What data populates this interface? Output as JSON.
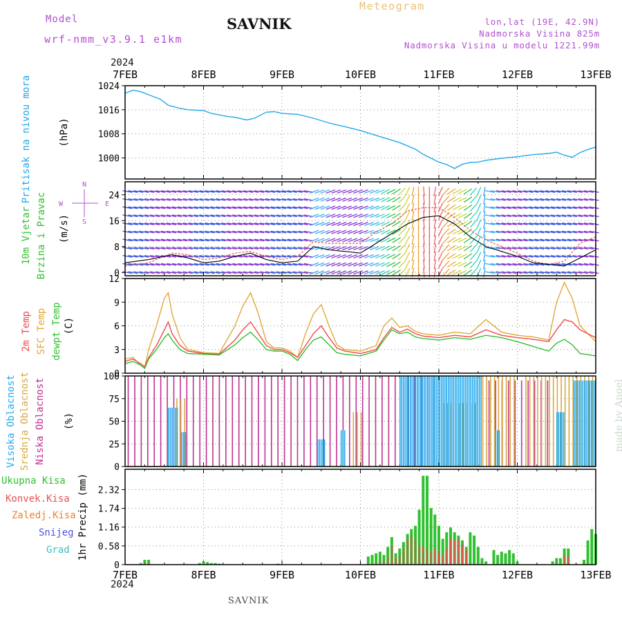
{
  "header": {
    "model_label": "Model",
    "model_name": "wrf-nmm_v3.9.1 e1km",
    "station": "SAVNIK",
    "product": "Meteogram",
    "coords": "lon,lat (19E, 42.9N)",
    "elevation": "Nadmorska Visina 825m",
    "model_elevation": "Nadmorska Visina u modelu 1221.99m",
    "footer_station": "SAVNIK",
    "credit": "made by Angel",
    "year": "2024"
  },
  "colors": {
    "pressure": "#22a7e8",
    "wind_line": "#000000",
    "wind_gust": "#f05050",
    "temp2m": "#f04848",
    "sfc": "#e0a838",
    "dew": "#30c030",
    "high_cloud": "#22aaee",
    "mid_cloud": "#d8a840",
    "low_cloud": "#c03090",
    "precip_total": "#30c030",
    "precip_conv": "#e85050",
    "precip_frozen": "#f08030",
    "precip_snow": "#5050e0",
    "precip_graupel": "#40c0c0",
    "magenta_label": "#b050d0"
  },
  "chart_data": [
    {
      "type": "line",
      "name": "pressure",
      "ylabel_1": "Pritisak na nivou mora",
      "ylabel_2": "(hPa)",
      "ylim": [
        993,
        1024
      ],
      "yticks": [
        "1024",
        "1016",
        "1008",
        "1000"
      ],
      "ytick_values": [
        1024,
        1016,
        1008,
        1000
      ],
      "xtick_labels": [
        "7FEB",
        "8FEB",
        "9FEB",
        "10FEB",
        "11FEB",
        "12FEB",
        "13FEB"
      ],
      "grid": true,
      "series": [
        {
          "name": "",
          "x_days": [
            0,
            0.1,
            0.2,
            0.3,
            0.45,
            0.55,
            0.7,
            0.8,
            1.0,
            1.1,
            1.3,
            1.4,
            1.55,
            1.65,
            1.8,
            1.9,
            2.0,
            2.2,
            2.4,
            2.6,
            2.8,
            3.0,
            3.2,
            3.4,
            3.5,
            3.7,
            3.8,
            4.0,
            4.1,
            4.2,
            4.3,
            4.4,
            4.5,
            4.6,
            4.8,
            5.0,
            5.2,
            5.4,
            5.5,
            5.6,
            5.7,
            5.8,
            5.9,
            6.0
          ],
          "values": [
            1021.5,
            1022.5,
            1022,
            1021,
            1019.5,
            1017.5,
            1016.5,
            1016,
            1015.7,
            1014.8,
            1013.8,
            1013.5,
            1012.6,
            1013.2,
            1015.2,
            1015.4,
            1014.8,
            1014.5,
            1013.2,
            1011.6,
            1010.4,
            1009.1,
            1007.5,
            1005.9,
            1005.1,
            1002.9,
            1001.2,
            998.6,
            997.8,
            996.5,
            997.9,
            998.5,
            998.6,
            999.2,
            999.9,
            1000.4,
            1001.1,
            1001.5,
            1001.9,
            1000.9,
            1000.2,
            1001.8,
            1002.8,
            1003.6
          ]
        }
      ]
    },
    {
      "type": "line",
      "name": "wind",
      "ylabel_1": "10m Vjetar",
      "ylabel_2": "Brzina i Pravac",
      "ylabel_3": "(m/s)",
      "compass": "N",
      "compass_w": "W",
      "compass_e": "E",
      "compass_s": "S",
      "ylim": [
        -1,
        28
      ],
      "yticks": [
        "24",
        "16",
        "8",
        "0"
      ],
      "ytick_values": [
        24,
        16,
        8,
        0
      ],
      "grid": true,
      "series": [
        {
          "name": "",
          "x_days": [
            0,
            0.3,
            0.6,
            0.8,
            1.0,
            1.2,
            1.4,
            1.6,
            1.8,
            2.0,
            2.2,
            2.4,
            2.6,
            2.8,
            3.0,
            3.2,
            3.4,
            3.6,
            3.8,
            4.0,
            4.2,
            4.4,
            4.6,
            4.8,
            5.0,
            5.2,
            5.4,
            5.6,
            5.8,
            6.0
          ],
          "values": [
            3,
            4,
            5.5,
            4.5,
            3,
            3.5,
            5,
            6,
            4,
            3,
            3.5,
            8,
            7,
            6.5,
            6,
            9,
            12,
            15,
            17,
            17.5,
            15,
            11,
            8,
            6.5,
            5,
            3,
            2.5,
            2,
            4.5,
            7
          ]
        },
        {
          "name": "",
          "x_days": [
            0,
            0.3,
            0.6,
            0.8,
            1.0,
            1.2,
            1.4,
            1.6,
            1.8,
            2.0,
            2.2,
            2.4,
            2.6,
            2.8,
            3.0,
            3.2,
            3.4,
            3.6,
            3.8,
            4.0,
            4.2,
            4.4,
            4.6,
            4.8,
            5.0,
            5.2,
            5.4,
            5.6,
            5.8,
            6.0
          ],
          "values": [
            2,
            3,
            6,
            5.5,
            4,
            4.5,
            6,
            6.5,
            5,
            4,
            5,
            9.5,
            9,
            9,
            9,
            12.5,
            15,
            19,
            20,
            20,
            17,
            13,
            10,
            8,
            6,
            3.5,
            2.5,
            3.5,
            9,
            11
          ]
        }
      ]
    },
    {
      "type": "line",
      "name": "temperature",
      "ylabel_1": "2m Temp",
      "ylabel_2": "SFC Temp",
      "ylabel_3": "dewpt Temp",
      "ylabel_4": "(C)",
      "ylim": [
        0,
        12
      ],
      "yticks": [
        "12",
        "9",
        "6",
        "3",
        "0"
      ],
      "ytick_values": [
        12,
        9,
        6,
        3,
        0
      ],
      "grid": true,
      "series": [
        {
          "name": "2m Temp",
          "x_days": [
            0,
            0.1,
            0.2,
            0.25,
            0.3,
            0.4,
            0.5,
            0.55,
            0.6,
            0.7,
            0.8,
            1.0,
            1.2,
            1.4,
            1.5,
            1.6,
            1.7,
            1.8,
            1.9,
            2.0,
            2.1,
            2.2,
            2.3,
            2.4,
            2.5,
            2.6,
            2.7,
            2.8,
            3.0,
            3.2,
            3.3,
            3.4,
            3.5,
            3.6,
            3.7,
            3.8,
            4.0,
            4.2,
            4.4,
            4.6,
            4.8,
            5.0,
            5.2,
            5.4,
            5.5,
            5.6,
            5.7,
            5.8,
            6.0
          ],
          "values": [
            1.5,
            1.8,
            1.2,
            0.8,
            2,
            3.5,
            5.5,
            6.5,
            5,
            3.5,
            2.8,
            2.5,
            2.4,
            4.2,
            5.5,
            6.5,
            5,
            3.5,
            3.0,
            3.0,
            2.6,
            2.0,
            3.5,
            5.0,
            6.0,
            4.5,
            3.2,
            2.8,
            2.5,
            3,
            4.5,
            5.8,
            5.2,
            5.6,
            5.0,
            4.7,
            4.5,
            4.8,
            4.6,
            5.5,
            4.8,
            4.5,
            4.3,
            4.0,
            5.5,
            6.8,
            6.5,
            5.5,
            4.5
          ]
        },
        {
          "name": "SFC Temp",
          "x_days": [
            0,
            0.1,
            0.2,
            0.25,
            0.3,
            0.4,
            0.5,
            0.55,
            0.6,
            0.7,
            0.8,
            1.0,
            1.2,
            1.4,
            1.5,
            1.6,
            1.7,
            1.8,
            1.9,
            2.0,
            2.1,
            2.2,
            2.3,
            2.4,
            2.5,
            2.6,
            2.7,
            2.8,
            3.0,
            3.2,
            3.3,
            3.4,
            3.5,
            3.6,
            3.7,
            3.8,
            4.0,
            4.2,
            4.4,
            4.6,
            4.8,
            5.0,
            5.2,
            5.4,
            5.5,
            5.6,
            5.7,
            5.8,
            6.0
          ],
          "values": [
            1.8,
            2.0,
            1.0,
            0.8,
            3,
            6,
            9.5,
            10.2,
            7.5,
            4.5,
            3.0,
            2.6,
            2.5,
            6,
            8.5,
            10.2,
            7.5,
            4.0,
            3.2,
            3.2,
            2.8,
            2.0,
            5.0,
            7.5,
            8.7,
            6.0,
            3.6,
            3.0,
            2.8,
            3.5,
            6.0,
            7.0,
            5.8,
            6.0,
            5.3,
            5.0,
            4.8,
            5.2,
            5.0,
            6.8,
            5.2,
            4.8,
            4.6,
            4.2,
            9.0,
            11.5,
            9.5,
            6.0,
            4.0
          ]
        },
        {
          "name": "dewpt Temp",
          "x_days": [
            0,
            0.1,
            0.2,
            0.25,
            0.3,
            0.4,
            0.5,
            0.55,
            0.6,
            0.7,
            0.8,
            1.0,
            1.2,
            1.4,
            1.5,
            1.6,
            1.7,
            1.8,
            1.9,
            2.0,
            2.1,
            2.2,
            2.3,
            2.4,
            2.5,
            2.6,
            2.7,
            2.8,
            3.0,
            3.2,
            3.3,
            3.4,
            3.5,
            3.6,
            3.7,
            3.8,
            4.0,
            4.2,
            4.4,
            4.6,
            4.8,
            5.0,
            5.2,
            5.4,
            5.5,
            5.6,
            5.7,
            5.8,
            6.0
          ],
          "values": [
            1.2,
            1.5,
            1.0,
            0.6,
            1.8,
            3.0,
            4.5,
            5.0,
            4.2,
            3.0,
            2.5,
            2.4,
            2.3,
            3.6,
            4.5,
            5.2,
            4.2,
            3.0,
            2.8,
            2.8,
            2.4,
            1.6,
            3.0,
            4.2,
            4.6,
            3.6,
            2.6,
            2.4,
            2.2,
            2.8,
            4.2,
            5.5,
            5.0,
            5.2,
            4.6,
            4.4,
            4.2,
            4.5,
            4.3,
            4.8,
            4.5,
            4.0,
            3.4,
            2.8,
            3.8,
            4.3,
            3.6,
            2.5,
            2.2
          ]
        }
      ]
    },
    {
      "type": "bar",
      "name": "clouds",
      "ylabel_1": "Visoka Oblacnost",
      "ylabel_2": "Srednja Oblacnost",
      "ylabel_3": "Niska Oblacnost",
      "ylabel_4": "(%)",
      "ylim": [
        0,
        100
      ],
      "yticks": [
        "100",
        "75",
        "50",
        "25",
        "0"
      ],
      "ytick_values": [
        100,
        75,
        50,
        25,
        0
      ],
      "grid": true,
      "high_segments": [
        {
          "from_day": 0.55,
          "to_day": 0.68,
          "value": 65,
          "label": ""
        },
        {
          "from_day": 0.72,
          "to_day": 0.78,
          "value": 38,
          "label": ""
        },
        {
          "from_day": 2.45,
          "to_day": 2.55,
          "value": 30,
          "label": ""
        },
        {
          "from_day": 2.75,
          "to_day": 2.82,
          "value": 40,
          "label": ""
        },
        {
          "from_day": 3.5,
          "to_day": 4.55,
          "value": 100,
          "label": ""
        },
        {
          "from_day": 4.72,
          "to_day": 4.78,
          "value": 40,
          "label": ""
        },
        {
          "from_day": 5.5,
          "to_day": 5.6,
          "value": 60,
          "label": ""
        },
        {
          "from_day": 5.72,
          "to_day": 6.0,
          "value": 95,
          "label": ""
        }
      ],
      "mid_segments": [
        {
          "from_day": 0.65,
          "to_day": 0.78,
          "value": 75,
          "label": ""
        },
        {
          "from_day": 2.9,
          "to_day": 3.05,
          "value": 60,
          "label": ""
        },
        {
          "from_day": 4.0,
          "to_day": 4.5,
          "value": 70,
          "label": ""
        },
        {
          "from_day": 4.55,
          "to_day": 5.0,
          "value": 100,
          "label": ""
        },
        {
          "from_day": 5.1,
          "to_day": 6.0,
          "value": 100,
          "label": ""
        }
      ],
      "low_segments": [
        {
          "from_day": 0.0,
          "to_day": 4.0,
          "value": 100,
          "label": ""
        },
        {
          "from_day": 4.6,
          "to_day": 5.4,
          "value": 95,
          "label": ""
        }
      ]
    },
    {
      "type": "bar",
      "name": "precipitation",
      "legend_total": "Ukupna Kisa",
      "legend_conv": "Konvek.Kisa",
      "legend_frozen": "Zaledj.Kisa",
      "legend_snow": "Snijeg",
      "legend_graupel": "Grad",
      "ylabel_1": "1hr Precip",
      "ylabel_2": "(mm)",
      "ylim": [
        0,
        2.95
      ],
      "yticks": [
        "2.32",
        "1.74",
        "1.16",
        "0.58",
        "0"
      ],
      "ytick_values": [
        2.32,
        1.74,
        1.16,
        0.58,
        0
      ],
      "grid": true,
      "x_days": [
        0.2,
        0.25,
        0.3,
        0.95,
        1.0,
        1.05,
        1.1,
        1.15,
        1.2,
        1.95,
        3.1,
        3.15,
        3.2,
        3.25,
        3.3,
        3.35,
        3.4,
        3.45,
        3.5,
        3.55,
        3.6,
        3.65,
        3.7,
        3.75,
        3.8,
        3.85,
        3.9,
        3.95,
        4.0,
        4.05,
        4.1,
        4.15,
        4.2,
        4.25,
        4.3,
        4.35,
        4.4,
        4.45,
        4.5,
        4.55,
        4.6,
        4.7,
        4.75,
        4.8,
        4.85,
        4.9,
        4.95,
        5.0,
        5.45,
        5.5,
        5.55,
        5.6,
        5.65,
        5.85,
        5.9,
        5.95,
        6.0
      ],
      "total": [
        0.05,
        0.15,
        0.15,
        0.05,
        0.1,
        0.08,
        0.05,
        0.05,
        0.03,
        0.03,
        0.25,
        0.3,
        0.35,
        0.4,
        0.3,
        0.55,
        0.85,
        0.35,
        0.5,
        0.7,
        0.95,
        1.1,
        1.2,
        1.7,
        2.75,
        2.75,
        1.75,
        1.55,
        1.2,
        0.8,
        1.0,
        1.15,
        1.0,
        0.9,
        0.75,
        0.55,
        1.0,
        0.9,
        0.55,
        0.2,
        0.1,
        0.45,
        0.3,
        0.4,
        0.35,
        0.45,
        0.35,
        0.1,
        0.1,
        0.2,
        0.2,
        0.5,
        0.5,
        0.15,
        0.75,
        1.1,
        0.95
      ],
      "conv": [
        0,
        0.05,
        0.05,
        0,
        0,
        0,
        0,
        0,
        0,
        0,
        0,
        0,
        0.05,
        0.1,
        0.1,
        0.25,
        0.6,
        0.2,
        0.3,
        0.5,
        0.8,
        0.9,
        0.8,
        0.6,
        0.6,
        0.5,
        0.4,
        0.5,
        0.4,
        0.3,
        0.5,
        0.8,
        0.75,
        0.8,
        0.6,
        0.45,
        0,
        0,
        0,
        0,
        0,
        0,
        0,
        0,
        0,
        0,
        0,
        0,
        0,
        0,
        0,
        0.3,
        0.25,
        0,
        0,
        0,
        0
      ]
    }
  ]
}
